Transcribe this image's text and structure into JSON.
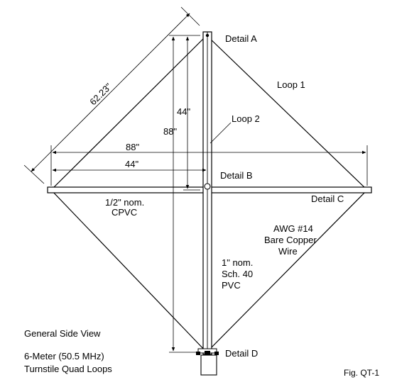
{
  "figure": {
    "title_line1": "6-Meter (50.5 MHz)",
    "title_line2": "Turnstile Quad Loops",
    "view_label": "General Side View",
    "fig_label": "Fig. QT-1"
  },
  "details": {
    "a": "Detail A",
    "b": "Detail B",
    "c": "Detail C",
    "d": "Detail D"
  },
  "loops": {
    "loop1": "Loop 1",
    "loop2": "Loop 2"
  },
  "dimensions": {
    "diagonal": "62.23\"",
    "vertical_half": "44\"",
    "vertical_full": "88\"",
    "horizontal_full": "88\"",
    "horizontal_half": "44\""
  },
  "materials": {
    "spreader_line1": "1/2\" nom.",
    "spreader_line2": "CPVC",
    "wire_line1": "AWG #14",
    "wire_line2": "Bare Copper",
    "wire_line3": "Wire",
    "mast_line1": "1\" nom.",
    "mast_line2": "Sch. 40",
    "mast_line3": "PVC"
  },
  "colors": {
    "ink": "#000000",
    "background": "#ffffff"
  }
}
